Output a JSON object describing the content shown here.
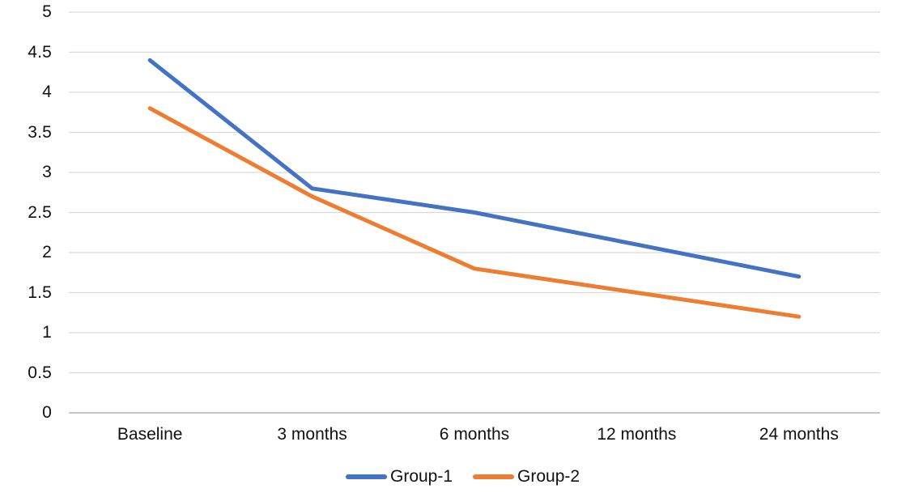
{
  "chart_data": {
    "type": "line",
    "title": "",
    "categories": [
      "Baseline",
      "3 months",
      "6 months",
      "12 months",
      "24 months"
    ],
    "series": [
      {
        "name": "Group-1",
        "color": "#4472C4",
        "values": [
          4.4,
          2.8,
          2.5,
          2.1,
          1.7
        ]
      },
      {
        "name": "Group-2",
        "color": "#ED7D31",
        "values": [
          3.8,
          2.7,
          1.8,
          1.5,
          1.2
        ]
      }
    ],
    "xlabel": "",
    "ylabel": "",
    "ylim": [
      0,
      5
    ],
    "yticks": [
      0,
      0.5,
      1,
      1.5,
      2,
      2.5,
      3,
      3.5,
      4,
      4.5,
      5
    ],
    "grid": true,
    "legend_position": "bottom",
    "colors": {
      "gridline": "#D9D9D9",
      "axis_line": "#BFBFBF",
      "label_text": "#111111",
      "background": "#FFFFFF"
    }
  }
}
